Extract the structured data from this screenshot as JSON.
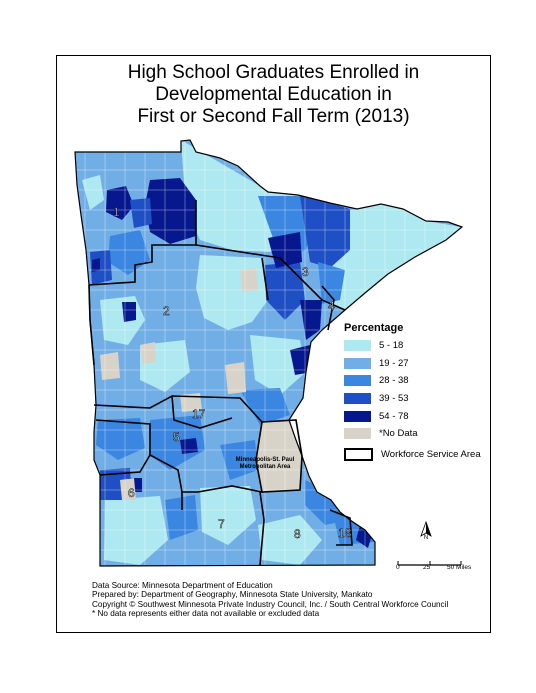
{
  "title": {
    "line1": "High School Graduates Enrolled in",
    "line2": "Developmental Education in",
    "line3": "First or Second Fall Term (2013)"
  },
  "legend": {
    "title": "Percentage",
    "items": [
      {
        "label": "5 - 18",
        "color": "#aee8f0"
      },
      {
        "label": "19 - 27",
        "color": "#72aee6"
      },
      {
        "label": "28 - 38",
        "color": "#3a86e0"
      },
      {
        "label": "39 - 53",
        "color": "#1f4fc4"
      },
      {
        "label": "54 - 78",
        "color": "#07188f"
      },
      {
        "label": "*No Data",
        "color": "#d8d3c8"
      }
    ],
    "boundary_label": "Workforce Service Area"
  },
  "metro_label": {
    "line1": "Minneapolis-St. Paul",
    "line2": "Metropolitan Area"
  },
  "regions": {
    "r1": "1",
    "r2": "2",
    "r3": "3",
    "r4": "4",
    "r5": "5",
    "r6": "6",
    "r7": "7",
    "r8": "8",
    "r17": "17",
    "r18": "18"
  },
  "scale": {
    "t0": "0",
    "t25": "25",
    "t50": "50 Miles"
  },
  "north": "N",
  "notes": {
    "source": "Data Source: Minnesota Department of Education",
    "prepared": "Prepared by: Department of Geography, Minnesota State University, Mankato",
    "copyright": "Copyright © Southwest Minnesota Private Industry Council, Inc.  / South Central Workforce Council",
    "nodata": "* No data represents either data not available or excluded data"
  }
}
